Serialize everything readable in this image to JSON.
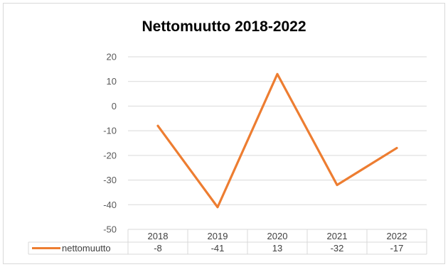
{
  "chart_data": {
    "type": "line",
    "title": "Nettomuutto 2018-2022",
    "categories": [
      "2018",
      "2019",
      "2020",
      "2021",
      "2022"
    ],
    "series": [
      {
        "name": "nettomuutto",
        "values": [
          -8,
          -41,
          13,
          -32,
          -17
        ],
        "color": "#ed7d31"
      }
    ],
    "ylim": [
      -50,
      20
    ],
    "yticks": [
      "20",
      "10",
      "0",
      "-10",
      "-20",
      "-30",
      "-40",
      "-50"
    ],
    "data_table_values": [
      "-8",
      "-41",
      "13",
      "-32",
      "-17"
    ],
    "grid": true,
    "legend": "data-table"
  }
}
